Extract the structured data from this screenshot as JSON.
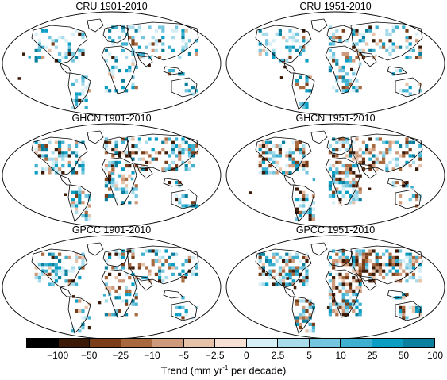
{
  "panels": [
    {
      "id": "cru-1901",
      "title": "CRU 1901-2010"
    },
    {
      "id": "cru-1951",
      "title": "CRU 1951-2010"
    },
    {
      "id": "ghcn-1901",
      "title": "GHCN 1901-2010"
    },
    {
      "id": "ghcn-1951",
      "title": "GHCN 1951-2010"
    },
    {
      "id": "gpcc-1901",
      "title": "GPCC 1901-2010"
    },
    {
      "id": "gpcc-1951",
      "title": "GPCC 1951-2010"
    }
  ],
  "colorbar": {
    "colors": [
      "#000000",
      "#3b1a08",
      "#7a3f1a",
      "#a9693f",
      "#cd9b7b",
      "#e6c2ab",
      "#f7e0d3",
      "#d6eef5",
      "#a8dcea",
      "#73c6de",
      "#3fb0d0",
      "#0a9ec4",
      "#0a7f9e"
    ],
    "tick_labels": [
      "-100",
      "-50",
      "-25",
      "-10",
      "-5",
      "-2.5",
      "0",
      "2.5",
      "5",
      "10",
      "25",
      "50",
      "100"
    ],
    "label_main": "Trend (mm yr",
    "label_sup": "-1",
    "label_end": " per decade)"
  }
}
